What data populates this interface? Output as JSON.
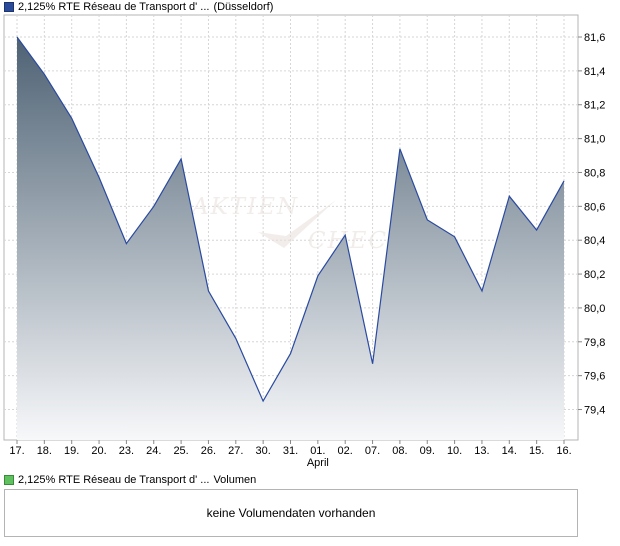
{
  "header": {
    "title": "2,125% RTE Réseau de Transport d' ...",
    "exchange": "(Düsseldorf)"
  },
  "volume": {
    "title": "2,125% RTE Réseau de Transport d' ...",
    "label": "Volumen",
    "empty_message": "keine Volumendaten vorhanden"
  },
  "watermark": {
    "line1": "AKTIEN",
    "line2": "CHECK"
  },
  "colors": {
    "line": "#2a4aa0",
    "area_top": "#4e6274",
    "area_bottom": "#f7f8fa",
    "grid": "#d6d6d6",
    "price_swatch": "#2a4a9a",
    "volume_swatch": "#5fc05f"
  },
  "chart_data": {
    "type": "area",
    "categories": [
      "17.",
      "18.",
      "19.",
      "20.",
      "23.",
      "24.",
      "25.",
      "26.",
      "27.",
      "30.",
      "31.",
      "01.",
      "02.",
      "07.",
      "08.",
      "09.",
      "10.",
      "13.",
      "14.",
      "15.",
      "16."
    ],
    "month_label": "April",
    "month_label_index": 11,
    "values": [
      81.6,
      81.38,
      81.12,
      80.77,
      80.38,
      80.6,
      80.88,
      80.1,
      79.82,
      79.45,
      79.73,
      80.19,
      80.43,
      79.67,
      80.94,
      80.52,
      80.42,
      80.1,
      80.66,
      80.46,
      80.75
    ],
    "ylim": [
      79.22,
      81.73
    ],
    "yticks": [
      "81,6",
      "81,4",
      "81,2",
      "81,0",
      "80,8",
      "80,6",
      "80,4",
      "80,2",
      "80,0",
      "79,8",
      "79,6",
      "79,4"
    ],
    "ytick_values": [
      81.6,
      81.4,
      81.2,
      81.0,
      80.8,
      80.6,
      80.4,
      80.2,
      80.0,
      79.8,
      79.6,
      79.4
    ],
    "grid": true,
    "y_axis_position": "right"
  }
}
